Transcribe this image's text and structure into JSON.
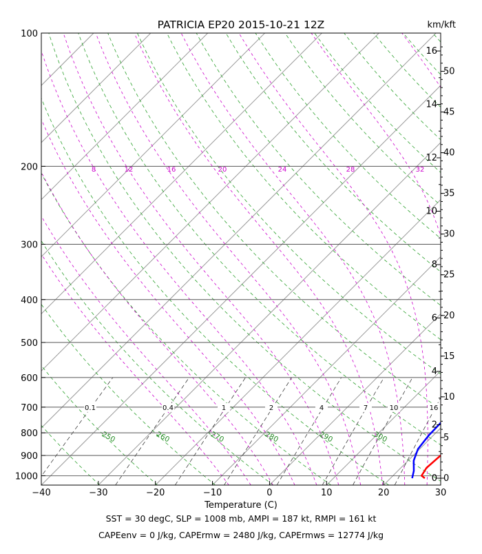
{
  "chart_data": {
    "type": "line",
    "title": "PATRICIA EP20 2015-10-21 12Z",
    "xlabel": "Temperature (C)",
    "ylabel": "Pressure (mb)",
    "right_label": "km/kft",
    "xlim": [
      -40,
      30
    ],
    "ylim": [
      1050,
      100
    ],
    "x_ticks": [
      -40,
      -30,
      -20,
      -10,
      0,
      10,
      20,
      30
    ],
    "p_ticks": [
      100,
      200,
      300,
      400,
      500,
      600,
      700,
      800,
      900,
      1000
    ],
    "km_ticks": [
      0,
      2,
      4,
      6,
      8,
      10,
      12,
      14,
      16
    ],
    "kft_ticks": [
      0,
      5,
      10,
      15,
      20,
      25,
      30,
      35,
      40,
      45,
      50
    ],
    "mixing_ratio_labels": [
      "0.1",
      "0.4",
      "1",
      "2",
      "4",
      "7",
      "10",
      "16"
    ],
    "theta_labels": [
      "250",
      "260",
      "270",
      "280",
      "290",
      "300"
    ],
    "theta_e_labels": [
      "8",
      "12",
      "16",
      "20",
      "24",
      "28",
      "32"
    ],
    "series": [
      {
        "name": "Temperature",
        "color": "#ff0000",
        "points": [
          [
            26,
            1013
          ],
          [
            25,
            1000
          ],
          [
            24.5,
            960
          ],
          [
            24.8,
            900
          ],
          [
            25.2,
            850
          ],
          [
            25.6,
            800
          ],
          [
            25.5,
            750
          ],
          [
            24.5,
            700
          ],
          [
            23.5,
            650
          ],
          [
            23,
            600
          ],
          [
            22.3,
            550
          ],
          [
            21.6,
            500
          ],
          [
            20.8,
            450
          ],
          [
            19.7,
            415
          ],
          [
            18.8,
            390
          ],
          [
            17.5,
            365
          ],
          [
            16.5,
            345
          ],
          [
            13.5,
            310
          ],
          [
            10.8,
            285
          ],
          [
            7.8,
            262
          ],
          [
            5.2,
            245
          ],
          [
            2.6,
            225
          ],
          [
            0.3,
            205
          ],
          [
            -1.4,
            190
          ],
          [
            -3.2,
            175
          ],
          [
            -4.8,
            160
          ],
          [
            -5.7,
            150
          ],
          [
            -5.5,
            140
          ],
          [
            -4.8,
            130
          ],
          [
            -4.2,
            120
          ],
          [
            -3.4,
            112
          ],
          [
            -0.5,
            100
          ]
        ]
      },
      {
        "name": "Dewpoint",
        "color": "#0000ff",
        "points": [
          [
            23.8,
            1013
          ],
          [
            22.8,
            975
          ],
          [
            21,
            925
          ],
          [
            19.7,
            870
          ],
          [
            19.2,
            810
          ],
          [
            19.1,
            760
          ],
          [
            19,
            700
          ],
          [
            18.8,
            650
          ],
          [
            18.6,
            600
          ],
          [
            18.2,
            550
          ],
          [
            17.4,
            500
          ],
          [
            16.2,
            455
          ],
          [
            14.6,
            415
          ],
          [
            12.6,
            380
          ],
          [
            10.4,
            345
          ],
          [
            8.2,
            315
          ],
          [
            5.7,
            285
          ],
          [
            2.9,
            255
          ],
          [
            -0.6,
            225
          ],
          [
            -3.7,
            200
          ],
          [
            -6.4,
            180
          ],
          [
            -8.9,
            165
          ],
          [
            -10.5,
            155
          ],
          [
            -10.9,
            145
          ],
          [
            -10.7,
            135
          ],
          [
            -10.4,
            125
          ],
          [
            -10.1,
            116
          ],
          [
            -9.2,
            108
          ],
          [
            -6.8,
            100
          ]
        ]
      }
    ],
    "footer": [
      "SST = 30 degC, SLP = 1008 mb, AMPI = 187 kt, RMPI = 161 kt",
      "CAPEenv = 0 J/kg, CAPErmw = 2480 J/kg, CAPErmws = 12774 J/kg"
    ]
  }
}
